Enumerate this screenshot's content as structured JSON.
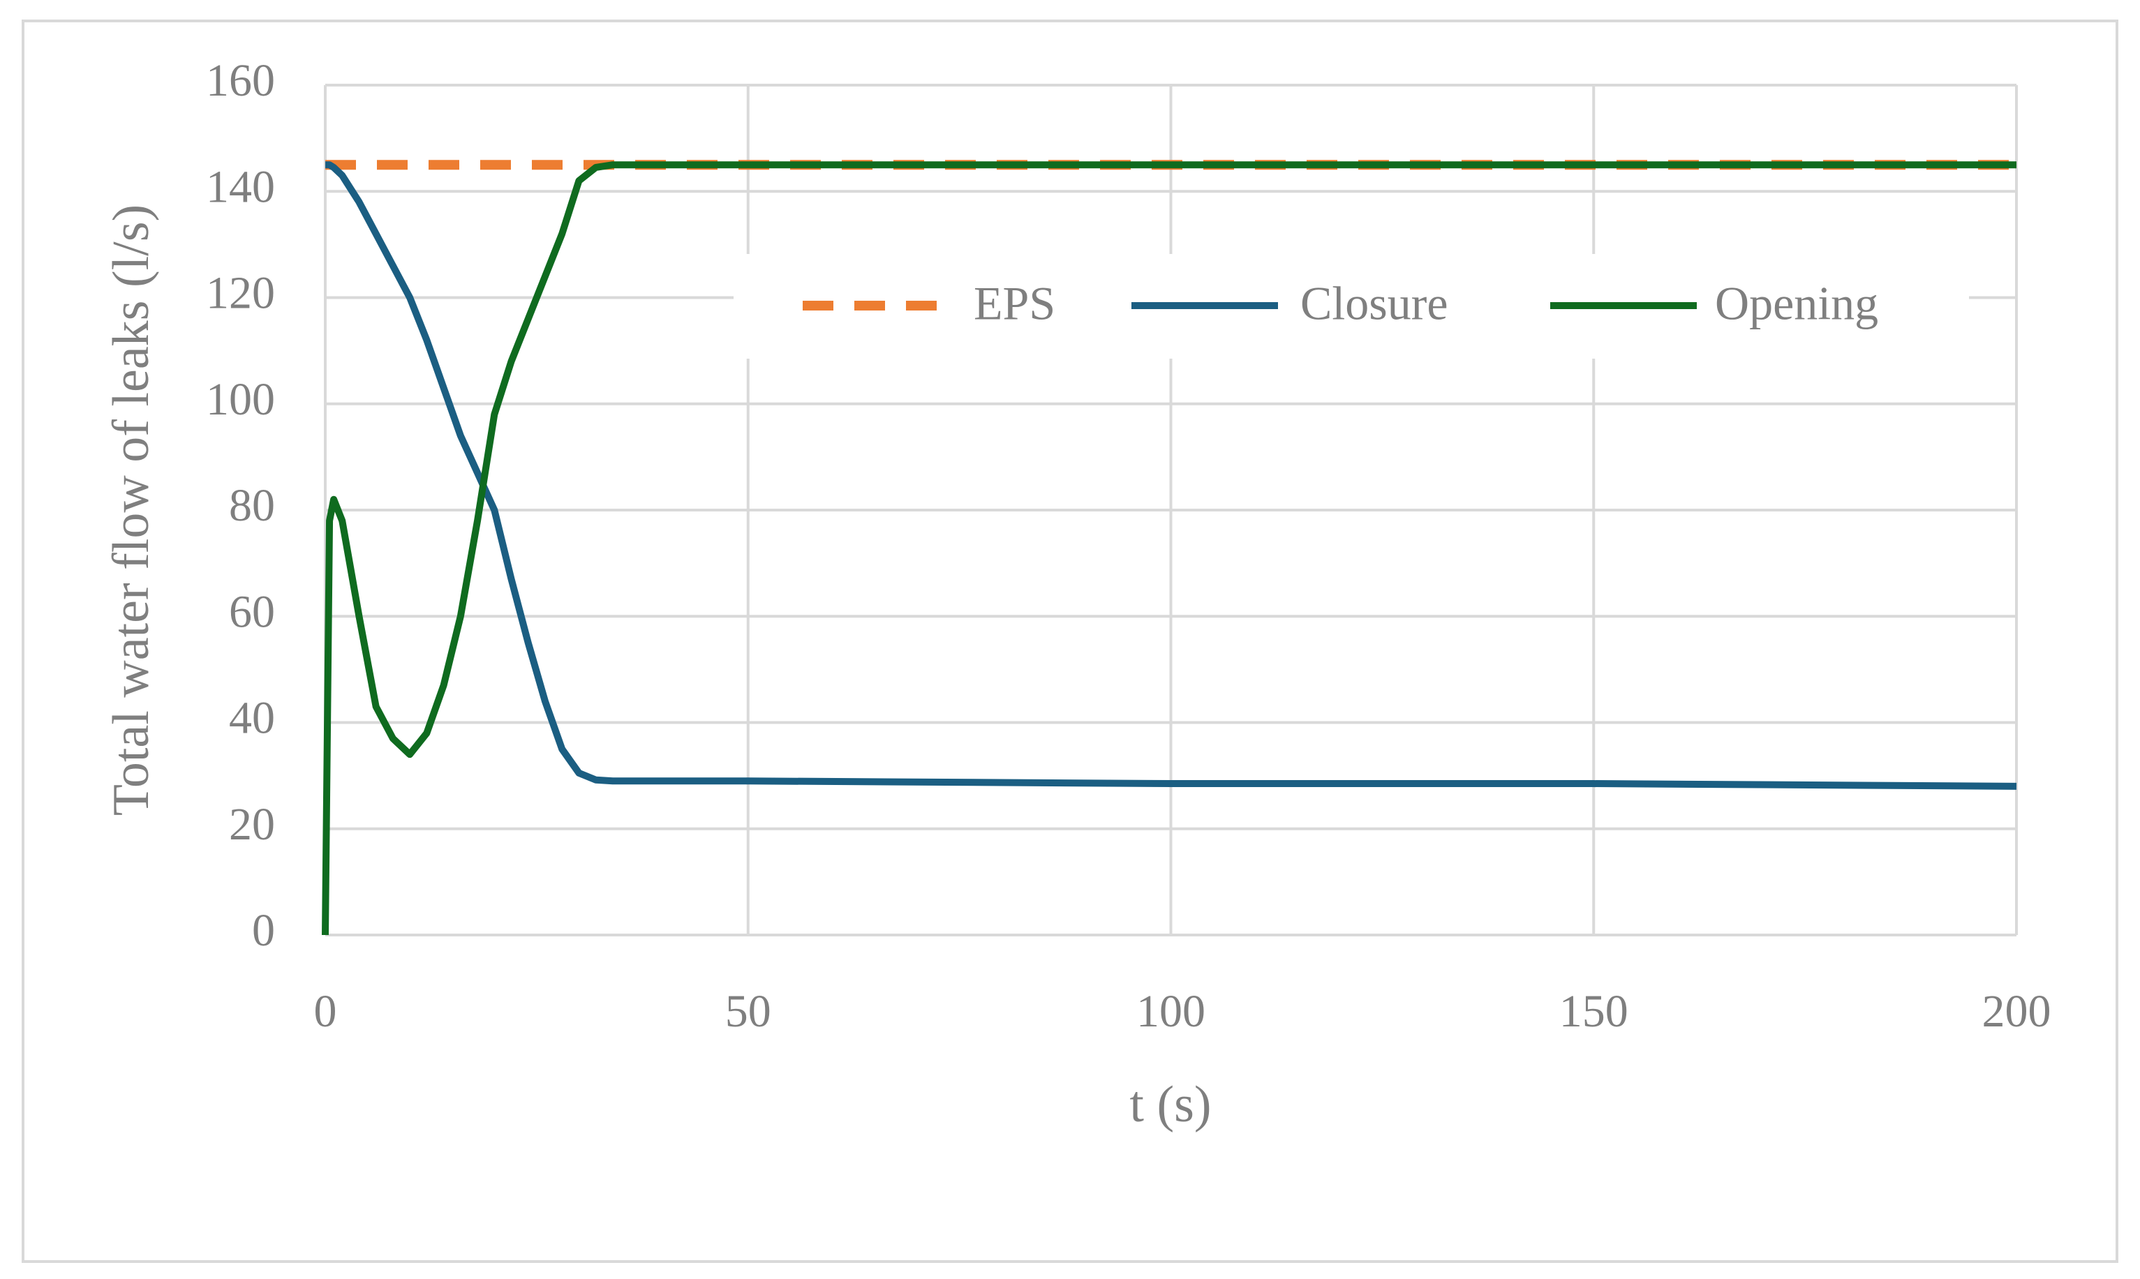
{
  "chart_data": {
    "type": "line",
    "x_label": "t (s)",
    "y_label": "Total water flow of leaks (l/s)",
    "x": [
      0,
      0.5,
      1,
      2,
      4,
      6,
      8,
      10,
      12,
      14,
      16,
      18,
      20,
      22,
      24,
      26,
      28,
      30,
      32,
      34,
      36,
      40,
      50,
      100,
      150,
      200
    ],
    "series": [
      {
        "name": "EPS",
        "color": "#ed7d31",
        "dashed": true,
        "values": [
          145,
          145,
          145,
          145,
          145,
          145,
          145,
          145,
          145,
          145,
          145,
          145,
          145,
          145,
          145,
          145,
          145,
          145,
          145,
          145,
          145,
          145,
          145,
          145,
          145,
          145
        ]
      },
      {
        "name": "Closure",
        "color": "#1b5e82",
        "dashed": false,
        "values": [
          145,
          145,
          144.5,
          143,
          138,
          132,
          126,
          120,
          112,
          103,
          94,
          87,
          80,
          67,
          55,
          44,
          35,
          30.5,
          29.2,
          29,
          29,
          29,
          29,
          28.5,
          28.5,
          28
        ]
      },
      {
        "name": "Opening",
        "color": "#0f6b1f",
        "dashed": false,
        "values": [
          0,
          78,
          82,
          78,
          60,
          43,
          37,
          34,
          38,
          47,
          60,
          78,
          98,
          108,
          116,
          124,
          132,
          142,
          144.5,
          145,
          145,
          145,
          145,
          145,
          145,
          145
        ]
      }
    ],
    "xlim": [
      0,
      200
    ],
    "xticks": [
      0,
      50,
      100,
      150,
      200
    ],
    "ylim": [
      0,
      160
    ],
    "yticks": [
      0,
      20,
      40,
      60,
      80,
      100,
      120,
      140,
      160
    ],
    "grid": true,
    "legend_position": "top"
  }
}
